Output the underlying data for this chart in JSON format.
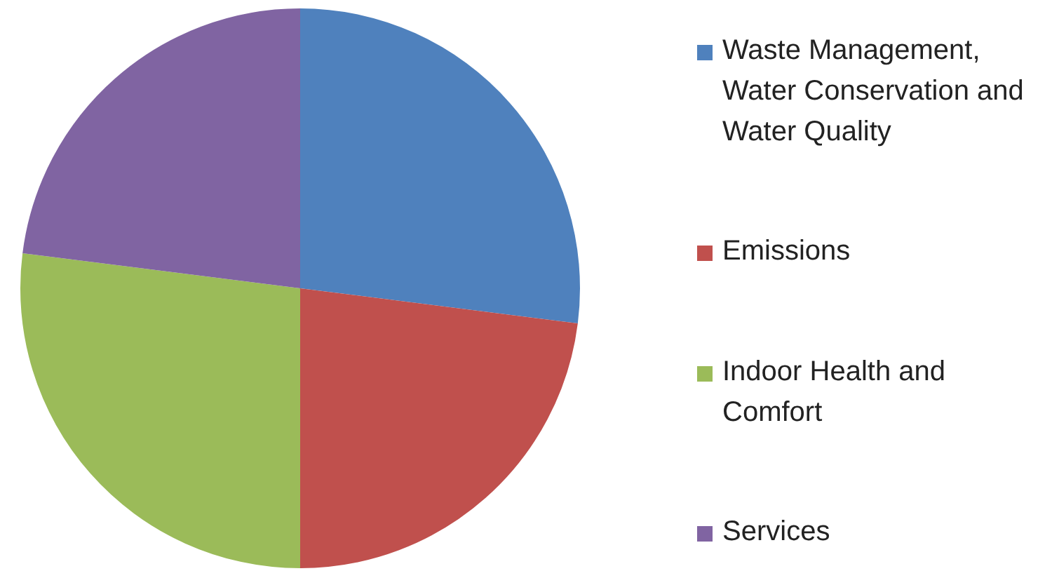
{
  "chart_data": {
    "type": "pie",
    "categories": [
      "Waste Management, Water Conservation and Water Quality",
      "Emissions",
      "Indoor Health and Comfort",
      "Services"
    ],
    "values": [
      27,
      23,
      27,
      23
    ],
    "colors": [
      "#4f81bd",
      "#c0504d",
      "#9bbb59",
      "#8064a2"
    ],
    "legend": "right"
  }
}
